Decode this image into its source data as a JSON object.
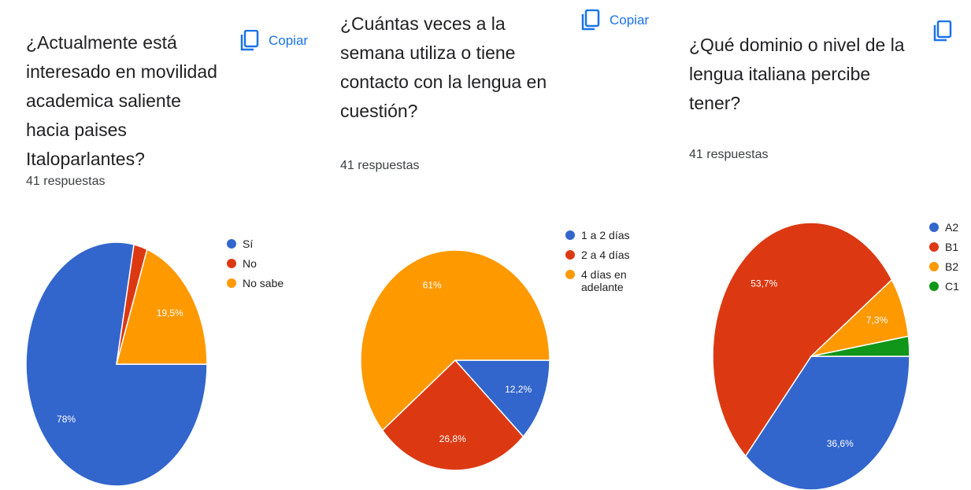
{
  "chart_data": [
    {
      "type": "pie",
      "title": "¿Actualmente está interesado en movilidad academica saliente hacia paises Italoparlantes?",
      "subtitle": "41 respuestas",
      "copy": "Copiar",
      "categories": [
        "Sí",
        "No",
        "No sabe"
      ],
      "values": [
        78,
        2.4,
        19.5
      ],
      "value_labels": [
        "78%",
        null,
        "19,5%"
      ],
      "colors": [
        "#3366cc",
        "#dc3912",
        "#ff9900"
      ]
    },
    {
      "type": "pie",
      "title": "¿Cuántas veces a la semana utiliza o tiene contacto con la lengua en cuestión?",
      "subtitle": "41 respuestas",
      "copy": "Copiar",
      "categories": [
        "1 a 2 días",
        "2 a 4 días",
        "4 días en adelante"
      ],
      "values": [
        12.2,
        26.8,
        61
      ],
      "value_labels": [
        "12,2%",
        "26,8%",
        "61%"
      ],
      "colors": [
        "#3366cc",
        "#dc3912",
        "#ff9900"
      ]
    },
    {
      "type": "pie",
      "title": "¿Qué dominio o nivel de la lengua italiana percibe tener?",
      "subtitle": "41 respuestas",
      "categories": [
        "A2",
        "B1",
        "B2",
        "C1"
      ],
      "values": [
        36.6,
        53.7,
        7.3,
        2.4
      ],
      "value_labels": [
        "36,6%",
        "53,7%",
        "7,3%",
        null
      ],
      "colors": [
        "#3366cc",
        "#dc3912",
        "#ff9900",
        "#109618"
      ]
    }
  ]
}
